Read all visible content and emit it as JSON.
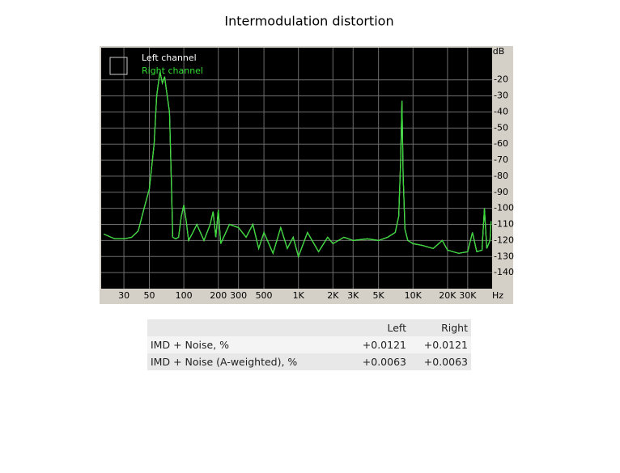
{
  "chart_data": {
    "type": "line",
    "title": "Intermodulation distortion",
    "x_unit": "Hz",
    "y_unit": "dB",
    "xscale": "log",
    "grid": true,
    "xlim": [
      19,
      49000
    ],
    "ylim": [
      -150,
      0
    ],
    "xticks": [
      30,
      50,
      100,
      200,
      300,
      500,
      {
        "value": 1000,
        "label": "1K"
      },
      {
        "value": 2000,
        "label": "2K"
      },
      {
        "value": 3000,
        "label": "3K"
      },
      {
        "value": 5000,
        "label": "5K"
      },
      {
        "value": 10000,
        "label": "10K"
      },
      {
        "value": 20000,
        "label": "20K"
      },
      {
        "value": 30000,
        "label": "30K"
      }
    ],
    "yticks": [
      -20,
      -30,
      -40,
      -50,
      -60,
      -70,
      -80,
      -90,
      -100,
      -110,
      -120,
      -130,
      -140
    ],
    "x": [
      20,
      25,
      30,
      35,
      40,
      45,
      50,
      55,
      58,
      60,
      62,
      65,
      68,
      70,
      75,
      78,
      80,
      85,
      90,
      95,
      100,
      105,
      110,
      120,
      130,
      150,
      170,
      180,
      190,
      200,
      210,
      250,
      300,
      350,
      400,
      450,
      500,
      600,
      700,
      800,
      900,
      1000,
      1200,
      1500,
      1800,
      2000,
      2500,
      3000,
      4000,
      5000,
      6000,
      7000,
      7500,
      7800,
      8000,
      8200,
      8500,
      9000,
      10000,
      12000,
      15000,
      18000,
      20000,
      25000,
      30000,
      33000,
      36000,
      40000,
      42000,
      44000,
      47000,
      48000
    ],
    "series": [
      {
        "name": "Left channel",
        "color": "#ffffff",
        "values": [
          -116,
          -119,
          -119,
          -118,
          -114,
          -100,
          -88,
          -60,
          -30,
          -22,
          -15,
          -22,
          -18,
          -25,
          -40,
          -85,
          -118,
          -119,
          -118,
          -105,
          -98,
          -108,
          -120,
          -115,
          -110,
          -120,
          -110,
          -102,
          -118,
          -101,
          -122,
          -110,
          -112,
          -118,
          -110,
          -125,
          -115,
          -128,
          -112,
          -125,
          -118,
          -130,
          -115,
          -127,
          -118,
          -122,
          -118,
          -120,
          -119,
          -120,
          -118,
          -115,
          -105,
          -70,
          -33,
          -80,
          -113,
          -120,
          -122,
          -123,
          -125,
          -120,
          -126,
          -128,
          -127,
          -115,
          -127,
          -126,
          -100,
          -125,
          -120,
          -108
        ]
      },
      {
        "name": "Right channel",
        "color": "#33dd33",
        "values": [
          -116,
          -119,
          -119,
          -118,
          -114,
          -100,
          -88,
          -60,
          -30,
          -22,
          -15,
          -22,
          -18,
          -25,
          -40,
          -85,
          -118,
          -119,
          -118,
          -105,
          -98,
          -108,
          -120,
          -115,
          -110,
          -120,
          -110,
          -102,
          -118,
          -101,
          -122,
          -110,
          -112,
          -118,
          -110,
          -125,
          -115,
          -128,
          -112,
          -125,
          -118,
          -130,
          -115,
          -127,
          -118,
          -122,
          -118,
          -120,
          -119,
          -120,
          -118,
          -115,
          -105,
          -70,
          -33,
          -80,
          -113,
          -120,
          -122,
          -123,
          -125,
          -120,
          -126,
          -128,
          -127,
          -115,
          -127,
          -126,
          -100,
          -125,
          -120,
          -108
        ]
      }
    ]
  },
  "table": {
    "columns": [
      "Left",
      "Right"
    ],
    "rows": [
      [
        "IMD + Noise, %",
        "+0.0121",
        "+0.0121"
      ],
      [
        "IMD + Noise (A-weighted), %",
        "+0.0063",
        "+0.0063"
      ]
    ]
  }
}
